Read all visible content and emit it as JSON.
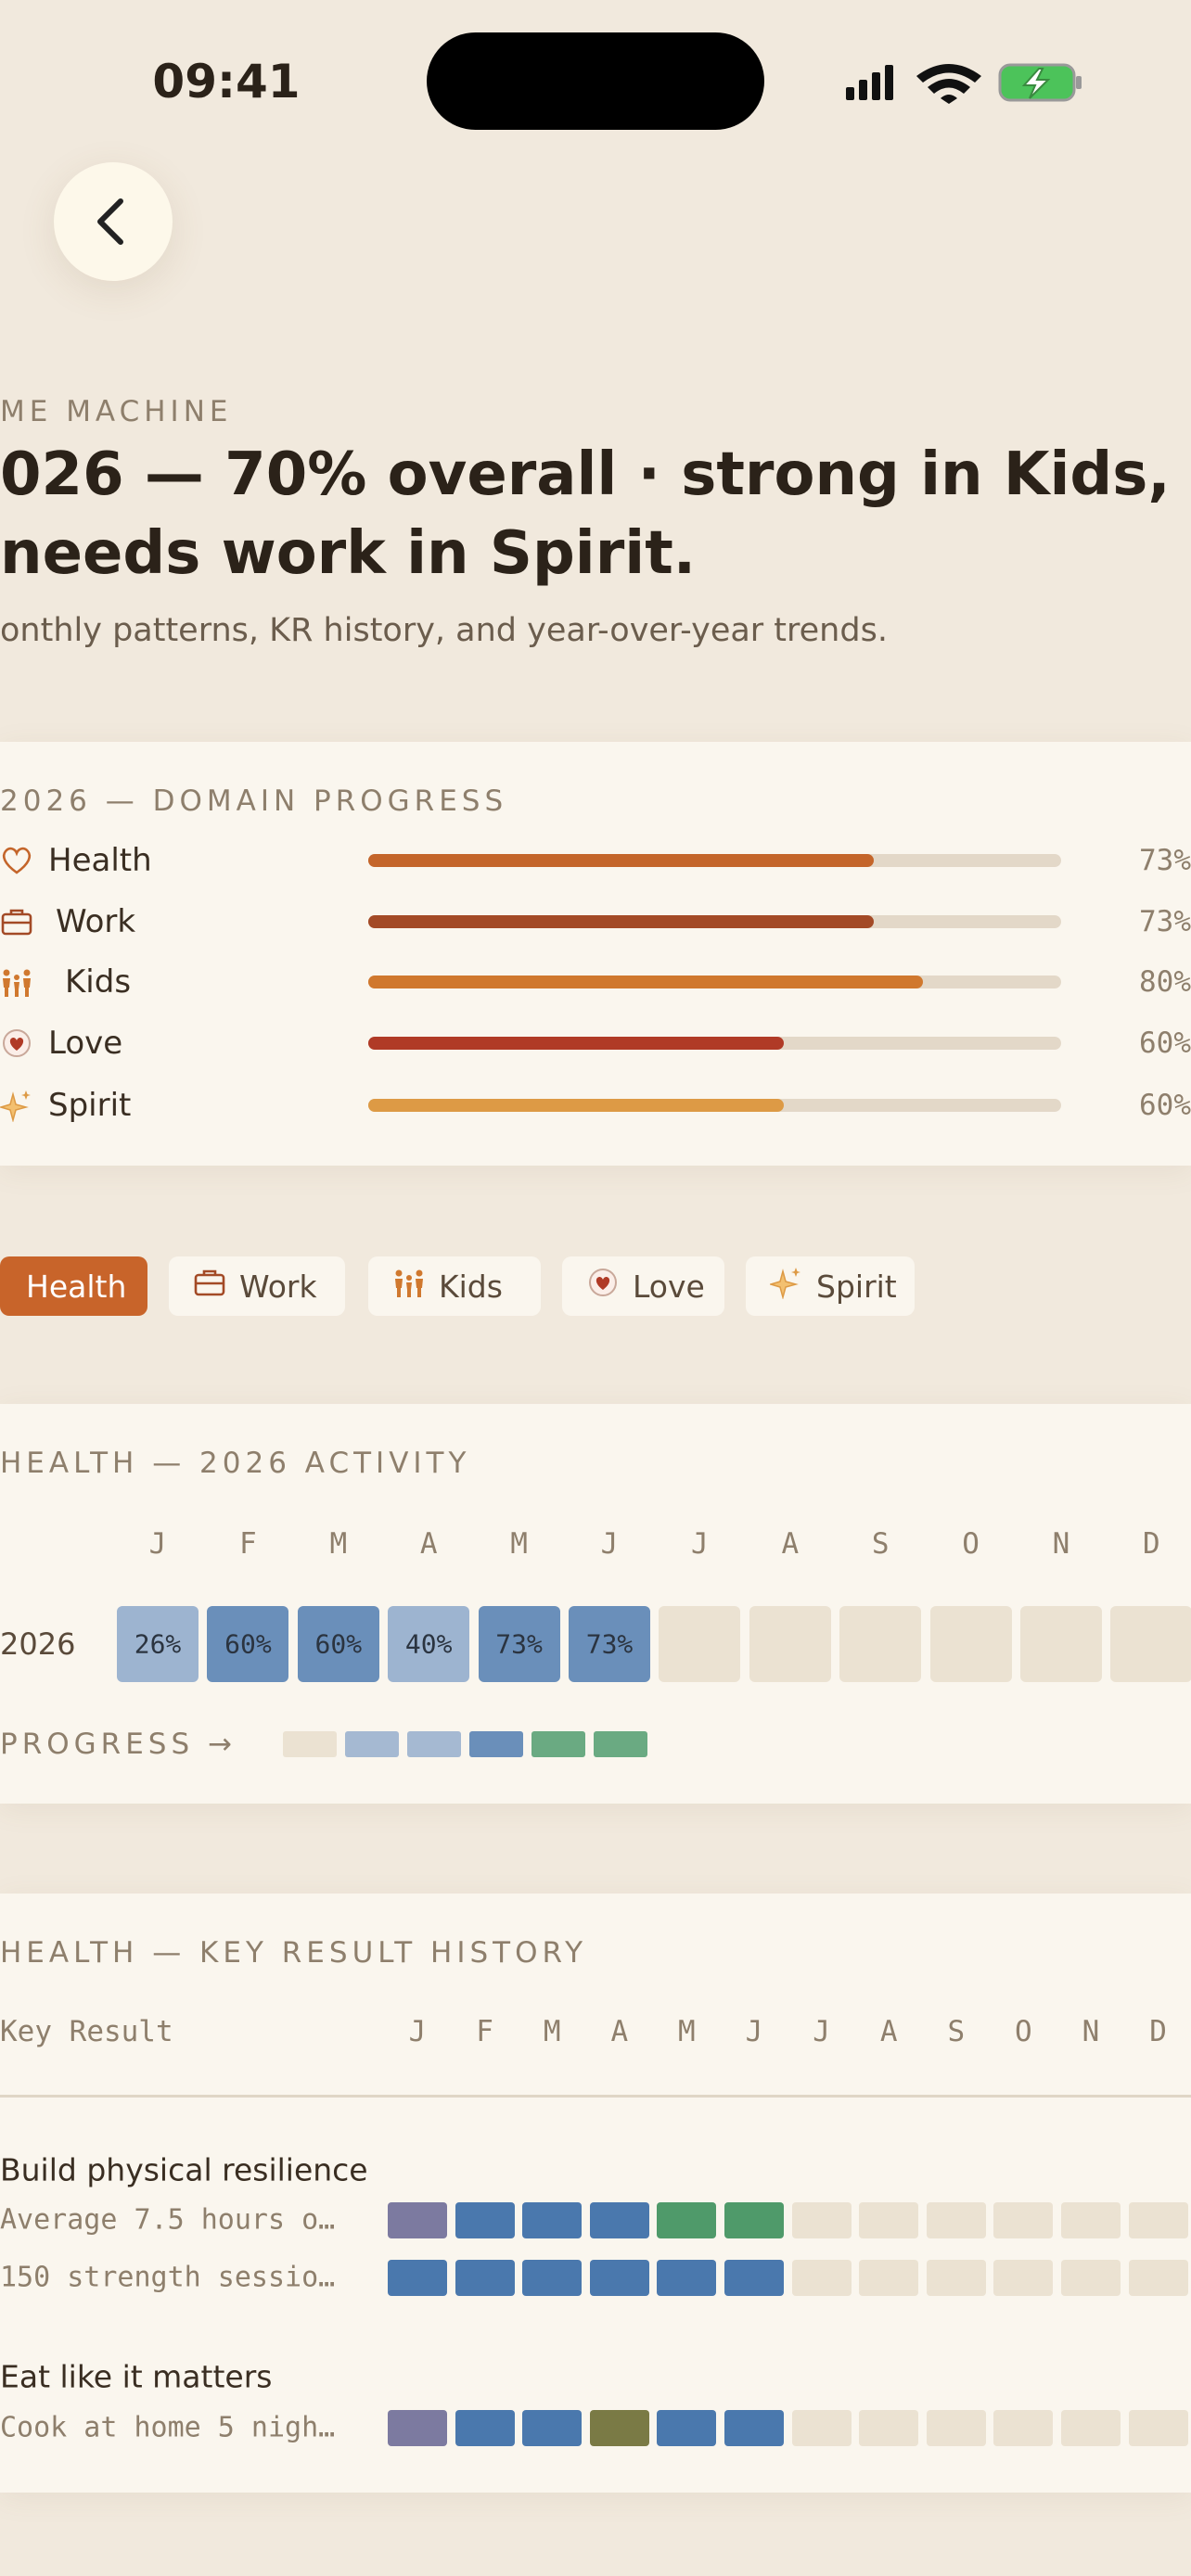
{
  "status_bar": {
    "time": "09:41"
  },
  "header": {
    "eyebrow": "ME MACHINE",
    "title": "026 — 70% overall · strong in Kids, needs work in Spirit.",
    "subtitle": "onthly patterns, KR history, and year-over-year trends."
  },
  "domain_progress": {
    "title": "2026 — DOMAIN PROGRESS",
    "xlim": [
      0,
      100
    ],
    "domains": [
      {
        "name": "Health",
        "value": 73,
        "label": "73%",
        "color": "#c4652a"
      },
      {
        "name": "Work",
        "value": 73,
        "label": "73%",
        "color": "#a34a26"
      },
      {
        "name": "Kids",
        "value": 80,
        "label": "80%",
        "color": "#d0782e"
      },
      {
        "name": "Love",
        "value": 60,
        "label": "60%",
        "color": "#b03a26"
      },
      {
        "name": "Spirit",
        "value": 60,
        "label": "60%",
        "color": "#dd9a45"
      }
    ]
  },
  "tabs": {
    "items": [
      "Health",
      "Work",
      "Kids",
      "Love",
      "Spirit"
    ],
    "active": 0
  },
  "activity": {
    "title": "HEALTH — 2026 ACTIVITY",
    "months": [
      "J",
      "F",
      "M",
      "A",
      "M",
      "J",
      "J",
      "A",
      "S",
      "O",
      "N",
      "D"
    ],
    "year": "2026",
    "values": [
      26,
      60,
      60,
      40,
      73,
      73,
      null,
      null,
      null,
      null,
      null,
      null
    ],
    "value_labels": [
      "26%",
      "60%",
      "60%",
      "40%",
      "73%",
      "73%",
      null,
      null,
      null,
      null,
      null,
      null
    ],
    "colors": [
      "#9db4d0",
      "#6a8fba",
      "#6a8fba",
      "#9db4d0",
      "#6a8fba",
      "#6a8fba",
      null,
      null,
      null,
      null,
      null,
      null
    ],
    "progress_label": "PROGRESS →",
    "progress_colors": [
      "#ebe2d2",
      "#a5b9d2",
      "#a5b9d2",
      "#6a8fba",
      "#6aaa82",
      "#6aaa82"
    ]
  },
  "kr_history": {
    "title": "HEALTH — KEY RESULT HISTORY",
    "column_label": "Key Result",
    "months": [
      "J",
      "F",
      "M",
      "A",
      "M",
      "J",
      "J",
      "A",
      "S",
      "O",
      "N",
      "D"
    ],
    "groups": [
      {
        "name": "Build physical resilience",
        "rows": [
          {
            "label": "Average 7.5 hours o…",
            "colors": [
              "#7c7aa0",
              "#4a78ad",
              "#4a78ad",
              "#4a78ad",
              "#4f9a6a",
              "#4f9a6a",
              null,
              null,
              null,
              null,
              null,
              null
            ]
          },
          {
            "label": "150 strength sessio…",
            "colors": [
              "#4a78ad",
              "#4a78ad",
              "#4a78ad",
              "#4a78ad",
              "#4a78ad",
              "#4a78ad",
              null,
              null,
              null,
              null,
              null,
              null
            ]
          }
        ]
      },
      {
        "name": "Eat like it matters",
        "rows": [
          {
            "label": "Cook at home 5 nigh…",
            "colors": [
              "#7c7aa0",
              "#4a78ad",
              "#4a78ad",
              "#7a7a45",
              "#4a78ad",
              "#4a78ad",
              null,
              null,
              null,
              null,
              null,
              null
            ]
          }
        ]
      }
    ]
  }
}
